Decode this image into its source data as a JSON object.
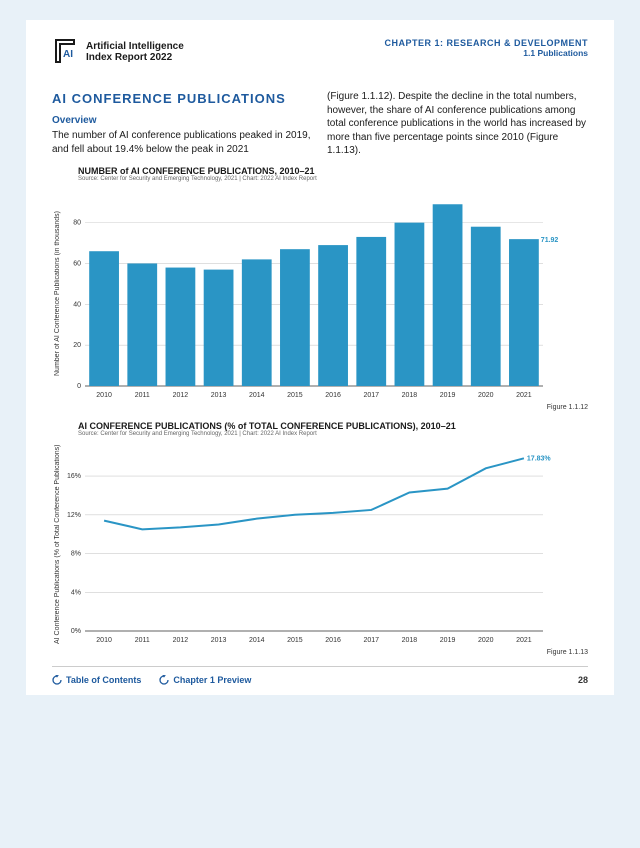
{
  "header": {
    "logo_line1": "Artificial Intelligence",
    "logo_line2": "Index Report 2022",
    "chapter": "CHAPTER 1: RESEARCH & DEVELOPMENT",
    "chapter_sub": "1.1 Publications"
  },
  "body": {
    "section_title": "AI CONFERENCE PUBLICATIONS",
    "overview_label": "Overview",
    "left_text": "The number of AI conference publications peaked in 2019, and fell about 19.4% below the peak in 2021",
    "right_text": "(Figure 1.1.12). Despite the decline in the total numbers, however, the share of AI conference publications among total conference publications in the world has increased by more than five percentage points since 2010 (Figure 1.1.13)."
  },
  "chart1": {
    "type": "bar",
    "title": "NUMBER of AI CONFERENCE PUBLICATIONS, 2010–21",
    "source": "Source: Center for Security and Emerging Technology, 2021 | Chart: 2022 AI Index Report",
    "ylabel": "Number of AI Conference Publications (in thousands)",
    "categories": [
      "2010",
      "2011",
      "2012",
      "2013",
      "2014",
      "2015",
      "2016",
      "2017",
      "2018",
      "2019",
      "2020",
      "2021"
    ],
    "values": [
      66,
      60,
      58,
      57,
      62,
      67,
      69,
      73,
      80,
      89,
      78,
      71.92
    ],
    "end_label": "71.92",
    "bar_color": "#2a95c5",
    "yticks": [
      0,
      20,
      40,
      60,
      80
    ],
    "ylim": [
      0,
      95
    ],
    "grid_color": "#cccccc",
    "axis_color": "#333333",
    "tick_fontsize": 7,
    "bar_width_ratio": 0.78,
    "figure_label": "Figure 1.1.12"
  },
  "chart2": {
    "type": "line",
    "title": "AI CONFERENCE PUBLICATIONS (% of TOTAL CONFERENCE PUBLICATIONS), 2010–21",
    "source": "Source: Center for Security and Emerging Technology, 2021 | Chart: 2022 AI Index Report",
    "ylabel": "AI Conference Publications (% of Total Conference Publications)",
    "categories": [
      "2010",
      "2011",
      "2012",
      "2013",
      "2014",
      "2015",
      "2016",
      "2017",
      "2018",
      "2019",
      "2020",
      "2021"
    ],
    "values": [
      11.4,
      10.5,
      10.7,
      11.0,
      11.6,
      12.0,
      12.2,
      12.5,
      14.3,
      14.7,
      16.8,
      17.83
    ],
    "end_label": "17.83%",
    "line_color": "#2a95c5",
    "line_width": 2,
    "yticks": [
      0,
      4,
      8,
      12,
      16
    ],
    "ytick_labels": [
      "0%",
      "4%",
      "8%",
      "12%",
      "16%"
    ],
    "ylim": [
      0,
      19
    ],
    "grid_color": "#cccccc",
    "axis_color": "#333333",
    "tick_fontsize": 7,
    "figure_label": "Figure 1.1.13"
  },
  "footer": {
    "toc": "Table of Contents",
    "preview": "Chapter 1 Preview",
    "page": "28"
  }
}
